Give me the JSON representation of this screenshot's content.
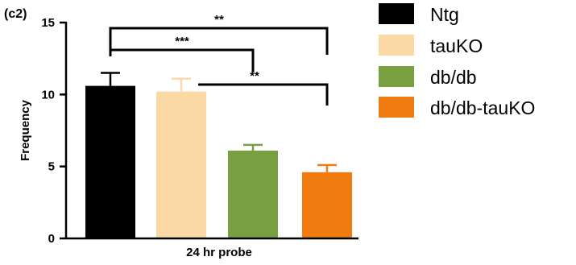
{
  "chart_data": {
    "type": "bar",
    "panel_label": "(c2)",
    "xlabel": "24 hr probe",
    "ylabel": "Frequency",
    "ylim": [
      0,
      15
    ],
    "yticks": [
      0,
      5,
      10,
      15
    ],
    "grid": false,
    "legend_position": "right",
    "categories": [
      "Ntg",
      "tauKO",
      "db/db",
      "db/db-tauKO"
    ],
    "series": [
      {
        "values": [
          10.6,
          10.2,
          6.1,
          4.6
        ],
        "error": [
          0.9,
          0.9,
          0.4,
          0.5
        ]
      }
    ],
    "colors": [
      "#000000",
      "#fbd9a5",
      "#78a040",
      "#f07c10"
    ],
    "significance": [
      {
        "from": 0,
        "to": 3,
        "label": "**"
      },
      {
        "from": 0,
        "to": 2,
        "label": "***"
      },
      {
        "from": 1,
        "to": 3,
        "label": "**"
      }
    ]
  }
}
